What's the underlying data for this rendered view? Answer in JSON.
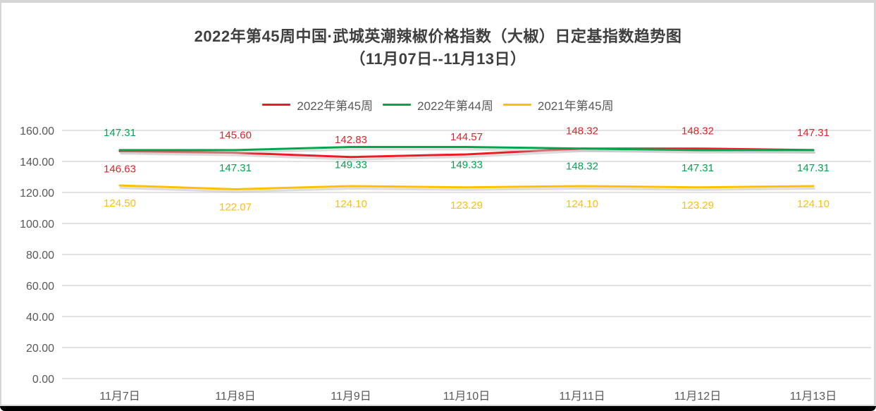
{
  "title": {
    "line1": "2022年第45周中国·武城英潮辣椒价格指数（大椒）日定基指数趋势图",
    "line2": "（11月07日--11月13日）"
  },
  "colors": {
    "red_series": "#ed1c24",
    "green_series": "#00a64f",
    "gold_series": "#ffc000",
    "gridline": "#d9d9d9",
    "axis_text": "#595959",
    "title_text": "#3f3f3f",
    "frame_border": "#d6d6d6"
  },
  "chart_data": {
    "type": "line",
    "title": "2022年第45周中国·武城英潮辣椒价格指数（大椒）日定基指数趋势图（11月07日--11月13日）",
    "categories": [
      "11月7日",
      "11月8日",
      "11月9日",
      "11月10日",
      "11月11日",
      "11月12日",
      "11月13日"
    ],
    "series": [
      {
        "name": "2022年第45周",
        "color": "#ed1c24",
        "values": [
          146.63,
          145.6,
          142.83,
          144.57,
          148.32,
          148.32,
          147.31
        ],
        "label_positions": [
          "below",
          "above",
          "above",
          "above",
          "above",
          "above",
          "above"
        ]
      },
      {
        "name": "2022年第44周",
        "color": "#00a64f",
        "values": [
          147.31,
          147.31,
          149.33,
          149.33,
          148.32,
          147.31,
          147.31
        ],
        "label_positions": [
          "above",
          "below",
          "below",
          "below",
          "below",
          "below",
          "below"
        ]
      },
      {
        "name": "2021年第45周",
        "color": "#ffc000",
        "values": [
          124.5,
          122.07,
          124.1,
          123.29,
          124.1,
          123.29,
          124.1
        ],
        "label_positions": [
          "below",
          "below",
          "below",
          "below",
          "below",
          "below",
          "below"
        ]
      }
    ],
    "y_axis": {
      "min": 0,
      "max": 160,
      "step": 20,
      "tick_labels": [
        "0.00",
        "20.00",
        "40.00",
        "60.00",
        "80.00",
        "100.00",
        "120.00",
        "140.00",
        "160.00"
      ]
    },
    "grid": true,
    "legend_position": "top",
    "data_labels": true,
    "value_format_decimals": 2
  }
}
